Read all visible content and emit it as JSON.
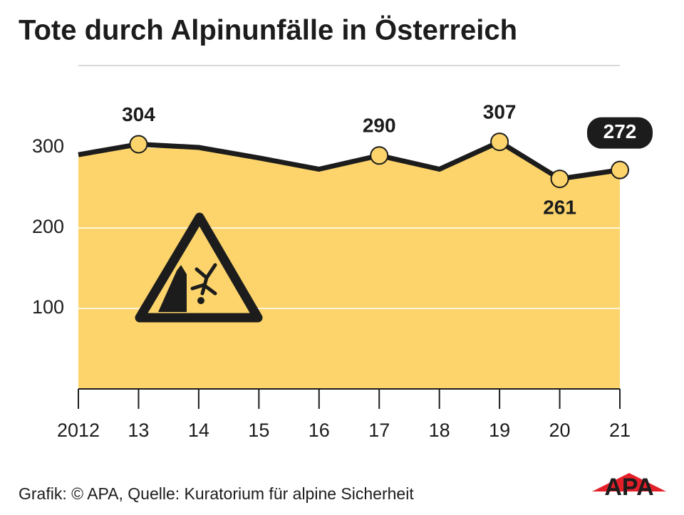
{
  "chart_data": {
    "type": "area",
    "title": "Tote durch Alpinunfälle in Österreich",
    "categories": [
      "2012",
      "13",
      "14",
      "15",
      "16",
      "17",
      "18",
      "19",
      "20",
      "21"
    ],
    "values": [
      291,
      304,
      300,
      287,
      273,
      290,
      273,
      307,
      261,
      272
    ],
    "value_labels": [
      null,
      "304",
      null,
      null,
      null,
      "290",
      null,
      "307",
      "261",
      "272"
    ],
    "color": "#fcd46b",
    "line_color": "#1c1c1c",
    "ylim": [
      0,
      400
    ],
    "yticks": [
      100,
      200,
      300
    ],
    "grid": true,
    "source": "Grafik: © APA, Quelle: Kuratorium für alpine Sicherheit",
    "logo": "APA"
  }
}
